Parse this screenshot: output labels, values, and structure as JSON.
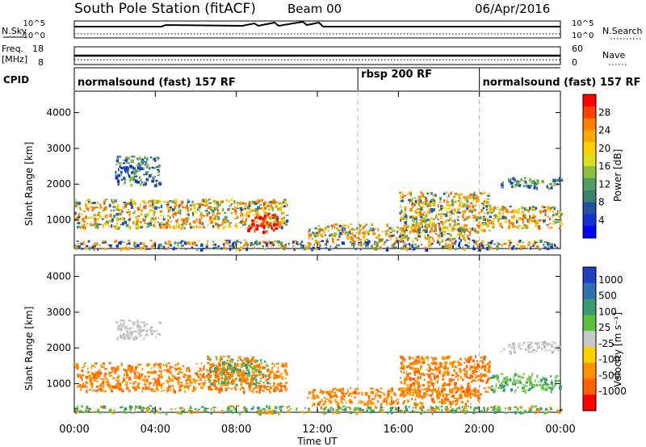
{
  "header": {
    "station": "South Pole Station (fitACF)",
    "beam": "Beam 00",
    "date": "06/Apr/2016"
  },
  "strips": {
    "nsky_label": "N.Sky",
    "nsky_ticks": [
      "10^5",
      "10^0"
    ],
    "nsearch_label": "N.Search",
    "nsearch_ticks": [
      "10^5",
      "10^0"
    ],
    "freq_label": "Freq.",
    "freq_unit": "[MHz]",
    "freq_ticks": [
      "18",
      "8"
    ],
    "nave_label": "Nave",
    "nave_ticks": [
      "60",
      "0"
    ],
    "cpid_label": "CPID"
  },
  "cpid_modes": [
    {
      "label": "normalsound (fast) 157 RF",
      "start_h": 0,
      "end_h": 14.0
    },
    {
      "label": "rbsp 200 RF",
      "start_h": 14.0,
      "end_h": 20.0
    },
    {
      "label": "normalsound (fast) 157 RF",
      "start_h": 20.0,
      "end_h": 24
    }
  ],
  "xaxis": {
    "label": "Time UT",
    "ticks": [
      "00:00",
      "04:00",
      "08:00",
      "12:00",
      "16:00",
      "20:00",
      "00:00"
    ]
  },
  "chart_data": [
    {
      "type": "heatmap",
      "title": "Power",
      "ylabel": "Slant Range [km]",
      "xlim_hours": [
        0,
        24
      ],
      "ylim": [
        200,
        4600
      ],
      "yticks": [
        "1000",
        "2000",
        "3000",
        "4000"
      ],
      "colorbar": {
        "label": "Power [dB]",
        "ticks": [
          "28",
          "24",
          "20",
          "16",
          "12",
          "8",
          "4"
        ],
        "colors": [
          "#ff0000",
          "#ff4000",
          "#ff7f00",
          "#ffaa00",
          "#ffd000",
          "#d8e020",
          "#8cc040",
          "#4fa060",
          "#3a7f70",
          "#2050a0",
          "#1030d0",
          "#0000ff"
        ]
      },
      "echo_regions": [
        {
          "t0": 0.0,
          "t1": 10.5,
          "r0": 800,
          "r1": 1600,
          "level": "medium"
        },
        {
          "t0": 8.5,
          "t1": 10.0,
          "r0": 700,
          "r1": 1200,
          "level": "high"
        },
        {
          "t0": 2.0,
          "t1": 4.2,
          "r0": 2000,
          "r1": 2800,
          "level": "low"
        },
        {
          "t0": 11.5,
          "t1": 19.5,
          "r0": 450,
          "r1": 900,
          "level": "medium"
        },
        {
          "t0": 16.0,
          "t1": 20.5,
          "r0": 700,
          "r1": 1800,
          "level": "medium"
        },
        {
          "t0": 20.5,
          "t1": 24.0,
          "r0": 800,
          "r1": 1400,
          "level": "medium"
        },
        {
          "t0": 21.0,
          "t1": 24.0,
          "r0": 1900,
          "r1": 2200,
          "level": "low"
        },
        {
          "t0": 0.0,
          "t1": 24.0,
          "r0": 200,
          "r1": 450,
          "level": "ground"
        }
      ]
    },
    {
      "type": "heatmap",
      "title": "Velocity",
      "ylabel": "Slant Range [km]",
      "xlim_hours": [
        0,
        24
      ],
      "ylim": [
        200,
        4600
      ],
      "yticks": [
        "1000",
        "2000",
        "3000",
        "4000"
      ],
      "colorbar": {
        "label": "Velocity [m s⁻¹]",
        "ticks": [
          "1000",
          "500",
          "100",
          "25",
          "-25",
          "-100",
          "-500",
          "-1000"
        ],
        "colors": [
          "#2040c0",
          "#3070b0",
          "#3a9a70",
          "#5cc040",
          "#c8c8c8",
          "#ffd000",
          "#ff9000",
          "#ff6000",
          "#ff0000"
        ]
      },
      "echo_regions": [
        {
          "t0": 0.0,
          "t1": 10.5,
          "r0": 800,
          "r1": 1600,
          "level": "negative"
        },
        {
          "t0": 6.5,
          "t1": 9.5,
          "r0": 1000,
          "r1": 1800,
          "level": "mixed"
        },
        {
          "t0": 2.0,
          "t1": 4.2,
          "r0": 2300,
          "r1": 2800,
          "level": "grey"
        },
        {
          "t0": 11.5,
          "t1": 20.0,
          "r0": 450,
          "r1": 900,
          "level": "negative"
        },
        {
          "t0": 16.0,
          "t1": 20.5,
          "r0": 700,
          "r1": 1800,
          "level": "negative"
        },
        {
          "t0": 20.5,
          "t1": 24.0,
          "r0": 800,
          "r1": 1300,
          "level": "positive"
        },
        {
          "t0": 21.0,
          "t1": 24.0,
          "r0": 1900,
          "r1": 2200,
          "level": "grey"
        },
        {
          "t0": 0.0,
          "t1": 24.0,
          "r0": 200,
          "r1": 400,
          "level": "green"
        }
      ]
    }
  ]
}
